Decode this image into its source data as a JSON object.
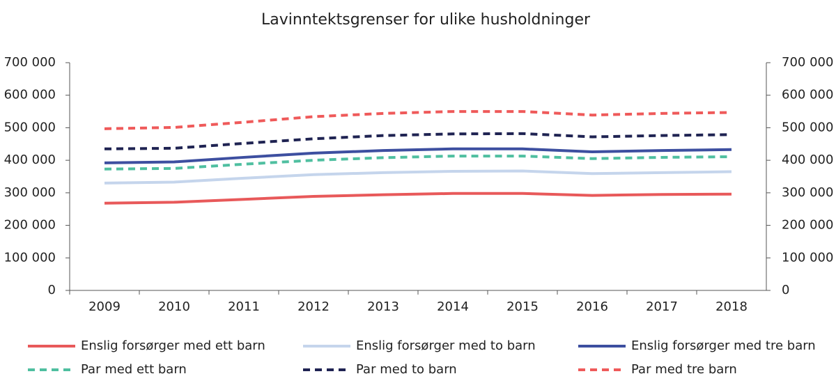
{
  "chart_data": {
    "type": "line",
    "title": "Lavinntektsgrenser for ulike husholdninger",
    "categories": [
      "2009",
      "2010",
      "2011",
      "2012",
      "2013",
      "2014",
      "2015",
      "2016",
      "2017",
      "2018"
    ],
    "series": [
      {
        "name": "Enslig forsørger med ett barn",
        "color": "#e8595a",
        "style": "solid",
        "values": [
          268000,
          271000,
          280000,
          289000,
          294000,
          298000,
          298000,
          292000,
          295000,
          296000
        ]
      },
      {
        "name": "Enslig forsørger med to barn",
        "color": "#c5d5ec",
        "style": "solid",
        "values": [
          330000,
          333000,
          345000,
          356000,
          362000,
          366000,
          367000,
          359000,
          362000,
          365000
        ]
      },
      {
        "name": "Enslig forsørger med tre barn",
        "color": "#3d4fa0",
        "style": "solid",
        "values": [
          392000,
          395000,
          409000,
          422000,
          430000,
          435000,
          435000,
          426000,
          430000,
          433000
        ]
      },
      {
        "name": "Par med ett barn",
        "color": "#4fbfa0",
        "style": "dashed",
        "values": [
          373000,
          375000,
          388000,
          400000,
          408000,
          413000,
          413000,
          405000,
          409000,
          411000
        ]
      },
      {
        "name": "Par med to barn",
        "color": "#1f2352",
        "style": "dashed",
        "values": [
          435000,
          437000,
          452000,
          466000,
          476000,
          481000,
          482000,
          472000,
          476000,
          479000
        ]
      },
      {
        "name": "Par med tre barn",
        "color": "#ef5a5a",
        "style": "dashed",
        "values": [
          497000,
          501000,
          517000,
          534000,
          544000,
          550000,
          550000,
          539000,
          544000,
          547000
        ]
      }
    ],
    "ylim": [
      0,
      700000
    ],
    "yticks": [
      0,
      {
        "value": 100000,
        "label": "100 000"
      },
      {
        "value": 200000,
        "label": "200 000"
      },
      {
        "value": 300000,
        "label": "300 000"
      },
      {
        "value": 400000,
        "label": "400 000"
      },
      {
        "value": 500000,
        "label": "500 000"
      },
      {
        "value": 600000,
        "label": "600 000"
      },
      {
        "value": 700000,
        "label": "700 000"
      }
    ],
    "y2lim": [
      0,
      700000
    ],
    "y2ticks": [
      0,
      {
        "value": 100000,
        "label": "100 000"
      },
      {
        "value": 200000,
        "label": "200 000"
      },
      {
        "value": 300000,
        "label": "300 000"
      },
      {
        "value": 400000,
        "label": "400 000"
      },
      {
        "value": 500000,
        "label": "500 000"
      },
      {
        "value": 600000,
        "label": "600 000"
      },
      {
        "value": 700000,
        "label": "700 000"
      }
    ],
    "grid": false
  }
}
